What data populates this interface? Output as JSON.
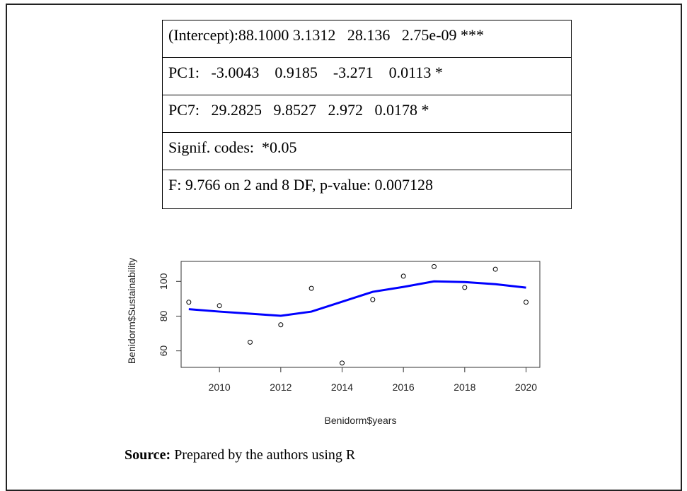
{
  "table": {
    "rows": [
      "(Intercept):88.1000 3.1312   28.136   2.75e-09 ***",
      "PC1:   -3.0043    0.9185    -3.271    0.0113 *",
      "PC7:   29.2825   9.8527   2.972   0.0178 *",
      "Signif. codes:  *0.05",
      "F: 9.766 on 2 and 8 DF, p-value: 0.007128"
    ]
  },
  "chart_data": {
    "type": "scatter",
    "x_label": "Benidorm$years",
    "y_label": "Benidorm$Sustainability",
    "x": [
      2009,
      2010,
      2011,
      2012,
      2013,
      2014,
      2015,
      2016,
      2017,
      2018,
      2019,
      2020
    ],
    "series": [
      {
        "color": "#000000",
        "marker": "circle",
        "values": [
          88,
          86,
          65,
          75,
          96,
          53,
          89.5,
          103,
          108.5,
          96.5,
          107,
          88
        ]
      },
      {
        "color": "#0000ff",
        "marker": "line",
        "values": [
          84,
          82.6,
          81.4,
          80.2,
          82.6,
          88.3,
          94,
          96.8,
          100,
          99.6,
          98.4,
          96.4
        ]
      }
    ],
    "xlim": [
      2008.75,
      2020.45
    ],
    "ylim": [
      50.5,
      111.5
    ],
    "xticks": [
      2010,
      2012,
      2014,
      2016,
      2018,
      2020
    ],
    "yticks": [
      60,
      80,
      100
    ]
  },
  "source": {
    "label": "Source:",
    "text": "Prepared by the authors using R"
  }
}
